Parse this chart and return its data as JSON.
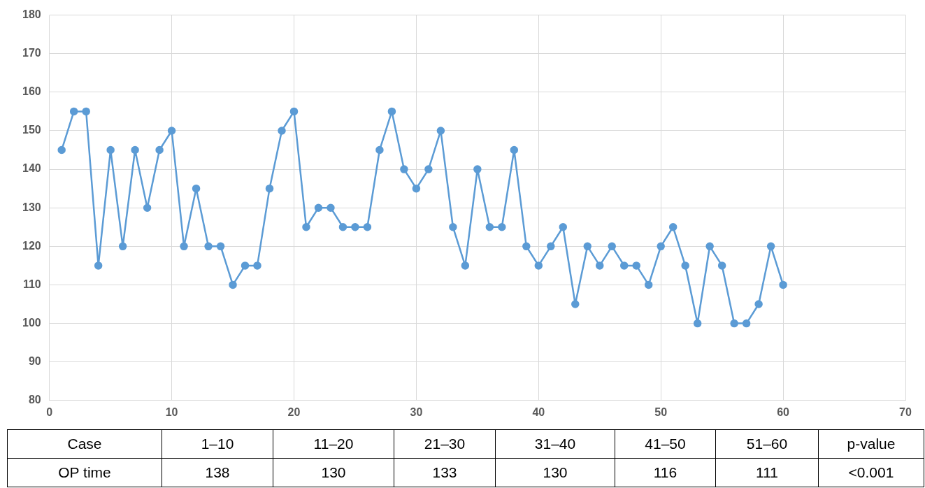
{
  "chart_data": {
    "type": "line",
    "color": "#5b9bd5",
    "marker": "circle",
    "line_style": "solid",
    "grid": true,
    "legend": false,
    "x": [
      1,
      2,
      3,
      4,
      5,
      6,
      7,
      8,
      9,
      10,
      11,
      12,
      13,
      14,
      15,
      16,
      17,
      18,
      19,
      20,
      21,
      22,
      23,
      24,
      25,
      26,
      27,
      28,
      29,
      30,
      31,
      32,
      33,
      34,
      35,
      36,
      37,
      38,
      39,
      40,
      41,
      42,
      43,
      44,
      45,
      46,
      47,
      48,
      49,
      50,
      51,
      52,
      53,
      54,
      55,
      56,
      57,
      58,
      59,
      60
    ],
    "values": [
      145,
      155,
      155,
      115,
      145,
      120,
      145,
      130,
      145,
      150,
      120,
      135,
      120,
      120,
      110,
      115,
      115,
      135,
      150,
      155,
      125,
      130,
      130,
      125,
      125,
      125,
      145,
      155,
      140,
      135,
      140,
      150,
      125,
      115,
      140,
      125,
      125,
      145,
      120,
      115,
      120,
      125,
      105,
      120,
      115,
      120,
      115,
      115,
      110,
      120,
      125,
      115,
      100,
      120,
      115,
      100,
      100,
      105,
      120,
      110
    ],
    "xlim": [
      0,
      70
    ],
    "xticks": [
      0,
      10,
      20,
      30,
      40,
      50,
      60,
      70
    ],
    "ylim": [
      80,
      180
    ],
    "yticks": [
      80,
      90,
      100,
      110,
      120,
      130,
      140,
      150,
      160,
      170,
      180
    ],
    "annotations": [
      "Case",
      "1–10",
      "11–20",
      "21–30",
      "31–40",
      "41–50",
      "51–60",
      "p-value",
      "OP time",
      "138",
      "130",
      "133",
      "130",
      "116",
      "111",
      "<0.001"
    ]
  }
}
